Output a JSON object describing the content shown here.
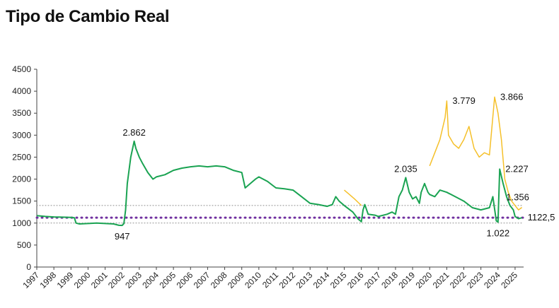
{
  "chart_data": {
    "type": "line",
    "title": "Tipo de Cambio Real",
    "xlabel": "",
    "ylabel": "",
    "ylim": [
      0,
      4500
    ],
    "xlim": [
      1997,
      2025.5
    ],
    "y_ticks": [
      "0",
      "500",
      "1000",
      "1500",
      "2000",
      "2500",
      "3000",
      "3500",
      "4000",
      "4500"
    ],
    "x_ticks": [
      "1997",
      "1998",
      "1999",
      "2000",
      "2001",
      "2002",
      "2003",
      "2004",
      "2005",
      "2006",
      "2007",
      "2008",
      "2009",
      "2010",
      "2011",
      "2012",
      "2013",
      "2014",
      "2015",
      "2016",
      "2017",
      "2018",
      "2019",
      "2020",
      "2021",
      "2022",
      "2023",
      "2024",
      "2025"
    ],
    "grid": false,
    "legend": "none",
    "reference_lines": [
      {
        "y": 1400,
        "style": "dotted",
        "color": "#888888"
      },
      {
        "y": 1122.5,
        "style": "dotted",
        "color": "#7030a0"
      },
      {
        "y": 1000,
        "style": "dotted",
        "color": "#888888"
      }
    ],
    "series": [
      {
        "color": "#1aa352",
        "points": [
          [
            1997.0,
            1170
          ],
          [
            1997.5,
            1150
          ],
          [
            1998.0,
            1140
          ],
          [
            1998.5,
            1135
          ],
          [
            1999.0,
            1130
          ],
          [
            1999.2,
            1120
          ],
          [
            1999.3,
            1000
          ],
          [
            1999.5,
            980
          ],
          [
            2000.0,
            990
          ],
          [
            2000.5,
            1000
          ],
          [
            2001.0,
            990
          ],
          [
            2001.5,
            980
          ],
          [
            2001.8,
            950
          ],
          [
            2002.0,
            947
          ],
          [
            2002.1,
            990
          ],
          [
            2002.2,
            1300
          ],
          [
            2002.3,
            1900
          ],
          [
            2002.5,
            2500
          ],
          [
            2002.7,
            2862
          ],
          [
            2002.8,
            2700
          ],
          [
            2003.0,
            2500
          ],
          [
            2003.2,
            2350
          ],
          [
            2003.5,
            2150
          ],
          [
            2003.8,
            2000
          ],
          [
            2004.0,
            2050
          ],
          [
            2004.5,
            2100
          ],
          [
            2005.0,
            2200
          ],
          [
            2005.5,
            2250
          ],
          [
            2006.0,
            2280
          ],
          [
            2006.5,
            2300
          ],
          [
            2007.0,
            2280
          ],
          [
            2007.5,
            2300
          ],
          [
            2008.0,
            2280
          ],
          [
            2008.5,
            2200
          ],
          [
            2009.0,
            2150
          ],
          [
            2009.2,
            1800
          ],
          [
            2009.5,
            1900
          ],
          [
            2009.8,
            2000
          ],
          [
            2010.0,
            2050
          ],
          [
            2010.5,
            1950
          ],
          [
            2011.0,
            1800
          ],
          [
            2011.5,
            1780
          ],
          [
            2012.0,
            1750
          ],
          [
            2012.5,
            1600
          ],
          [
            2013.0,
            1450
          ],
          [
            2013.5,
            1420
          ],
          [
            2014.0,
            1380
          ],
          [
            2014.3,
            1420
          ],
          [
            2014.5,
            1600
          ],
          [
            2014.7,
            1500
          ],
          [
            2015.0,
            1400
          ],
          [
            2015.5,
            1250
          ],
          [
            2015.8,
            1100
          ],
          [
            2016.0,
            1030
          ],
          [
            2016.1,
            1300
          ],
          [
            2016.2,
            1420
          ],
          [
            2016.4,
            1200
          ],
          [
            2016.8,
            1180
          ],
          [
            2017.0,
            1150
          ],
          [
            2017.5,
            1200
          ],
          [
            2017.8,
            1250
          ],
          [
            2018.0,
            1200
          ],
          [
            2018.2,
            1600
          ],
          [
            2018.4,
            1750
          ],
          [
            2018.6,
            2035
          ],
          [
            2018.8,
            1700
          ],
          [
            2019.0,
            1550
          ],
          [
            2019.2,
            1600
          ],
          [
            2019.4,
            1450
          ],
          [
            2019.5,
            1700
          ],
          [
            2019.7,
            1900
          ],
          [
            2019.9,
            1700
          ],
          [
            2020.0,
            1650
          ],
          [
            2020.3,
            1600
          ],
          [
            2020.6,
            1750
          ],
          [
            2021.0,
            1700
          ],
          [
            2021.5,
            1600
          ],
          [
            2022.0,
            1500
          ],
          [
            2022.5,
            1350
          ],
          [
            2023.0,
            1300
          ],
          [
            2023.5,
            1350
          ],
          [
            2023.7,
            1600
          ],
          [
            2023.9,
            1050
          ],
          [
            2024.0,
            1022
          ],
          [
            2024.1,
            2227
          ],
          [
            2024.3,
            1900
          ],
          [
            2024.5,
            1600
          ],
          [
            2024.7,
            1400
          ],
          [
            2024.9,
            1300
          ],
          [
            2025.0,
            1150
          ],
          [
            2025.2,
            1100
          ],
          [
            2025.4,
            1122.5
          ]
        ]
      },
      {
        "color": "#f5c02a",
        "points": [
          [
            2015.0,
            1750
          ],
          [
            2015.3,
            1650
          ],
          [
            2015.6,
            1550
          ],
          [
            2016.0,
            1400
          ]
        ]
      },
      {
        "color": "#f5c02a",
        "points": [
          [
            2020.0,
            2300
          ],
          [
            2020.3,
            2600
          ],
          [
            2020.6,
            2900
          ],
          [
            2020.9,
            3400
          ],
          [
            2021.0,
            3779
          ],
          [
            2021.1,
            3000
          ],
          [
            2021.4,
            2800
          ],
          [
            2021.7,
            2700
          ],
          [
            2022.0,
            2900
          ],
          [
            2022.3,
            3200
          ],
          [
            2022.6,
            2700
          ],
          [
            2022.9,
            2500
          ],
          [
            2023.2,
            2600
          ],
          [
            2023.5,
            2550
          ],
          [
            2023.8,
            3866
          ],
          [
            2024.0,
            3500
          ],
          [
            2024.2,
            2900
          ],
          [
            2024.4,
            2000
          ],
          [
            2024.6,
            1700
          ],
          [
            2024.8,
            1500
          ],
          [
            2025.0,
            1400
          ],
          [
            2025.2,
            1300
          ],
          [
            2025.4,
            1356
          ]
        ]
      }
    ],
    "annotations": [
      {
        "text": "2.862",
        "x": 2002.7,
        "y": 2862,
        "pos": "above"
      },
      {
        "text": "947",
        "x": 2002.0,
        "y": 947,
        "pos": "below"
      },
      {
        "text": "2.035",
        "x": 2018.6,
        "y": 2035,
        "pos": "above"
      },
      {
        "text": "3.779",
        "x": 2021.0,
        "y": 3779,
        "pos": "right"
      },
      {
        "text": "3.866",
        "x": 2023.8,
        "y": 3866,
        "pos": "right"
      },
      {
        "text": "2.227",
        "x": 2024.1,
        "y": 2227,
        "pos": "right"
      },
      {
        "text": "1.356",
        "x": 2025.4,
        "y": 1356,
        "pos": "above-left"
      },
      {
        "text": "1.022",
        "x": 2024.0,
        "y": 1022,
        "pos": "below"
      },
      {
        "text": "1122,5",
        "x": 2025.4,
        "y": 1122.5,
        "pos": "right"
      }
    ]
  }
}
